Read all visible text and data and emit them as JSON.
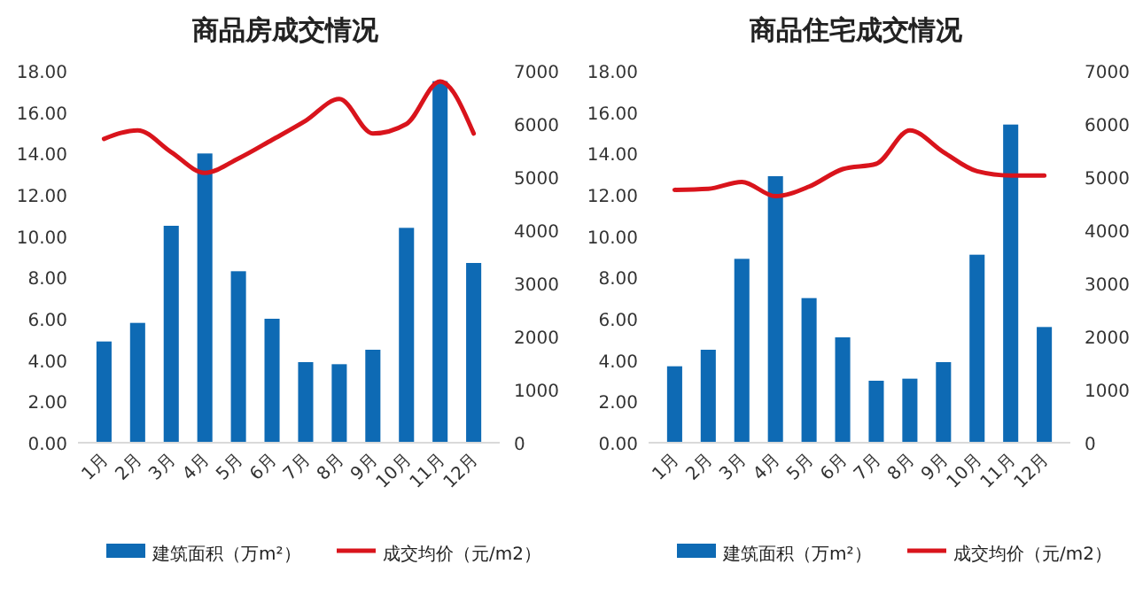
{
  "chart_data": [
    {
      "type": "bar",
      "title": "商品房成交情况",
      "categories": [
        "1月",
        "2月",
        "3月",
        "4月",
        "5月",
        "6月",
        "7月",
        "8月",
        "9月",
        "10月",
        "11月",
        "12月"
      ],
      "series": [
        {
          "name": "建筑面积（万m²）",
          "color": "#0e6ab4",
          "values": [
            4.9,
            5.8,
            10.5,
            14.0,
            8.3,
            6.0,
            3.9,
            3.8,
            4.5,
            10.4,
            17.5,
            8.7
          ]
        },
        {
          "name": "成交均价（元/m2）",
          "type": "line",
          "axis": "y2",
          "color": "#d9141c",
          "values": [
            5720,
            5880,
            5470,
            5080,
            5350,
            5700,
            6060,
            6470,
            5820,
            6000,
            6800,
            5820
          ]
        }
      ],
      "ylim": [
        0,
        18
      ],
      "yticks": [
        {
          "value": 0,
          "label": "0.00"
        },
        {
          "value": 2,
          "label": "2.00"
        },
        {
          "value": 4,
          "label": "4.00"
        },
        {
          "value": 6,
          "label": "6.00"
        },
        {
          "value": 8,
          "label": "8.00"
        },
        {
          "value": 10,
          "label": "10.00"
        },
        {
          "value": 12,
          "label": "12.00"
        },
        {
          "value": 14,
          "label": "14.00"
        },
        {
          "value": 16,
          "label": "16.00"
        },
        {
          "value": 18,
          "label": "18.00"
        }
      ],
      "y2lim": [
        0,
        7000
      ],
      "y2ticks": [
        0,
        1000,
        2000,
        3000,
        4000,
        5000,
        6000,
        7000
      ],
      "legend": "bottom",
      "grid": false
    },
    {
      "type": "bar",
      "title": "商品住宅成交情况",
      "categories": [
        "1月",
        "2月",
        "3月",
        "4月",
        "5月",
        "6月",
        "7月",
        "8月",
        "9月",
        "10月",
        "11月",
        "12月"
      ],
      "series": [
        {
          "name": "建筑面积（万m²）",
          "color": "#0e6ab4",
          "values": [
            3.7,
            4.5,
            8.9,
            12.9,
            7.0,
            5.1,
            3.0,
            3.1,
            3.9,
            9.1,
            15.4,
            5.6
          ]
        },
        {
          "name": "成交均价（元/m2）",
          "type": "line",
          "axis": "y2",
          "color": "#d9141c",
          "values": [
            4760,
            4780,
            4910,
            4640,
            4820,
            5150,
            5250,
            5880,
            5470,
            5110,
            5030,
            5030
          ]
        }
      ],
      "ylim": [
        0,
        18
      ],
      "yticks": [
        {
          "value": 0,
          "label": "0.00"
        },
        {
          "value": 2,
          "label": "2.00"
        },
        {
          "value": 4,
          "label": "4.00"
        },
        {
          "value": 6,
          "label": "6.00"
        },
        {
          "value": 8,
          "label": "8.00"
        },
        {
          "value": 10,
          "label": "10.00"
        },
        {
          "value": 12,
          "label": "12.00"
        },
        {
          "value": 14,
          "label": "14.00"
        },
        {
          "value": 16,
          "label": "16.00"
        },
        {
          "value": 18,
          "label": "18.00"
        }
      ],
      "y2lim": [
        0,
        7000
      ],
      "y2ticks": [
        0,
        1000,
        2000,
        3000,
        4000,
        5000,
        6000,
        7000
      ],
      "legend": "bottom",
      "grid": false
    }
  ]
}
